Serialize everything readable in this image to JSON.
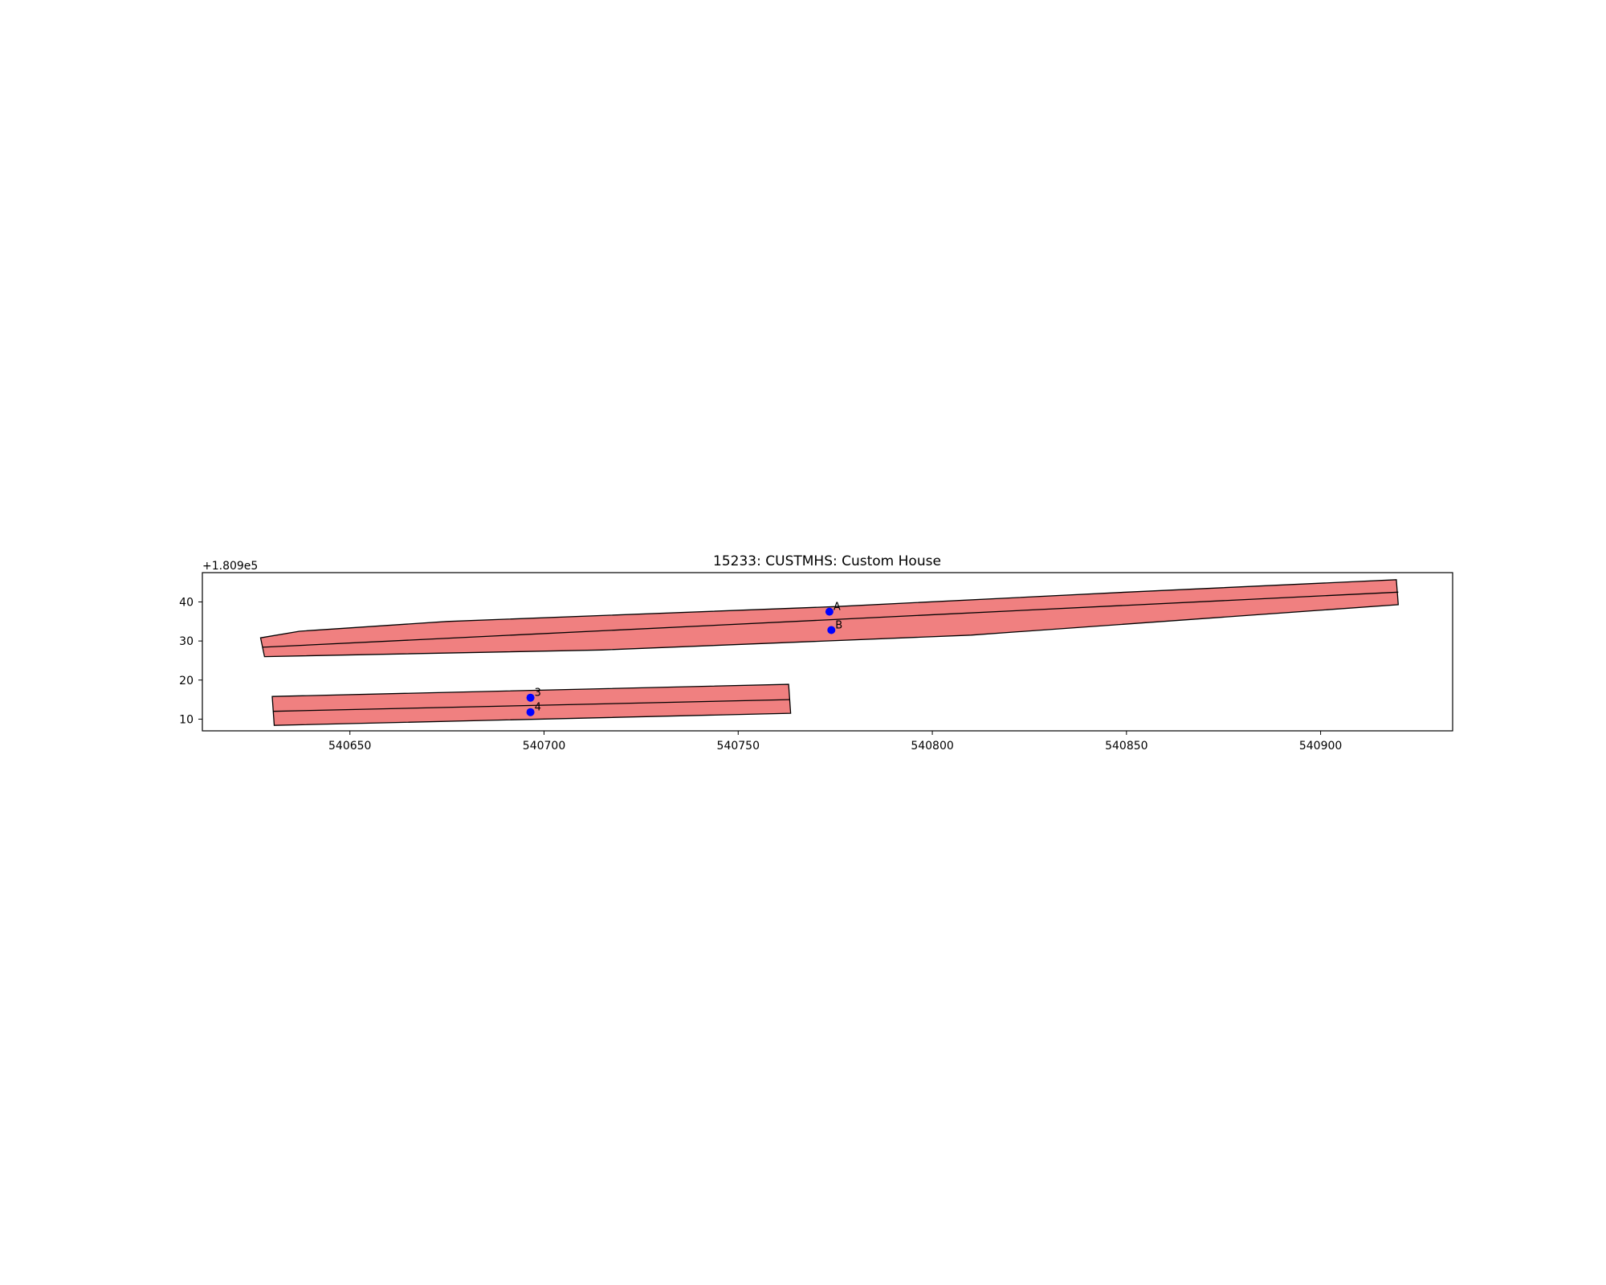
{
  "chart_data": {
    "type": "map",
    "title": "15233: CUSTMHS: Custom House",
    "y_offset_text": "+1.809e5",
    "xlim": [
      540612,
      540934
    ],
    "ylim": [
      7,
      47.5
    ],
    "x_ticks": [
      540650,
      540700,
      540750,
      540800,
      540850,
      540900
    ],
    "x_tick_labels": [
      "540650",
      "540700",
      "540750",
      "540800",
      "540850",
      "540900"
    ],
    "y_ticks": [
      10,
      20,
      30,
      40
    ],
    "y_tick_labels": [
      "10",
      "20",
      "30",
      "40"
    ],
    "grid": false,
    "colors": {
      "fill": "#f08080",
      "edge": "#000000",
      "point": "#0000ff"
    },
    "polygons": [
      {
        "outline": [
          [
            540627,
            30.8
          ],
          [
            540637,
            32.5
          ],
          [
            540675,
            35.0
          ],
          [
            540775,
            38.8
          ],
          [
            540850,
            42.5
          ],
          [
            540919.5,
            45.7
          ],
          [
            540920,
            39.3
          ],
          [
            540810,
            31.5
          ],
          [
            540715,
            27.7
          ],
          [
            540628,
            26.0
          ]
        ],
        "centerline": [
          [
            540627.5,
            28.4
          ],
          [
            540920,
            42.5
          ]
        ]
      },
      {
        "outline": [
          [
            540630,
            15.8
          ],
          [
            540763,
            18.9
          ],
          [
            540763.5,
            11.5
          ],
          [
            540630.5,
            8.4
          ]
        ],
        "centerline": [
          [
            540630.2,
            12.0
          ],
          [
            540763.2,
            15.0
          ]
        ]
      }
    ],
    "points": [
      {
        "label": "A",
        "x": 540773.5,
        "y": 37.5
      },
      {
        "label": "B",
        "x": 540774,
        "y": 32.8
      },
      {
        "label": "3",
        "x": 540696.5,
        "y": 15.5
      },
      {
        "label": "4",
        "x": 540696.5,
        "y": 11.8
      }
    ]
  }
}
